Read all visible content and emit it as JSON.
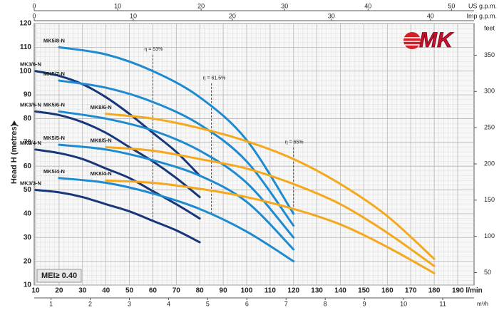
{
  "chart_data": {
    "type": "line",
    "y_label": "Head H (metres)",
    "xlim": [
      9.4,
      197
    ],
    "xticks": [
      10,
      20,
      30,
      40,
      50,
      60,
      70,
      80,
      90,
      100,
      110,
      120,
      130,
      140,
      150,
      160,
      170,
      180,
      {
        "value": 190,
        "label": "190 l/min"
      }
    ],
    "ylim": [
      10,
      120
    ],
    "yticks": [
      10,
      20,
      30,
      40,
      50,
      60,
      70,
      80,
      90,
      100,
      110,
      120
    ],
    "y2_label": "feet",
    "y2lim": [
      32.8,
      393.7
    ],
    "y2ticks": [
      50,
      100,
      150,
      200,
      250,
      300,
      350
    ],
    "top_axes": [
      {
        "label": "US g.p.m.",
        "lim": [
          0,
          52.7
        ],
        "ticks": [
          0,
          10,
          20,
          30,
          40,
          50
        ]
      },
      {
        "label": "Imp g.p.m.",
        "lim": [
          0,
          44.4
        ],
        "ticks": [
          0,
          10,
          20,
          30,
          40
        ]
      }
    ],
    "bottom_axis2": {
      "label": "m³/h",
      "lim": [
        0.57,
        11.8
      ],
      "ticks": [
        1,
        2,
        3,
        4,
        5,
        6,
        7,
        8,
        9,
        10,
        11
      ]
    },
    "grid": true,
    "series": [
      {
        "name": "MK3/3-N",
        "color": "#17377a",
        "x": [
          10,
          20,
          30,
          40,
          50,
          60,
          70,
          80
        ],
        "values": [
          50,
          49,
          47,
          44,
          41,
          37,
          33,
          28
        ]
      },
      {
        "name": "MK3/4-N",
        "color": "#17377a",
        "x": [
          10,
          20,
          30,
          40,
          50,
          60,
          70,
          80
        ],
        "values": [
          67,
          65.5,
          63,
          59,
          55,
          49.5,
          44,
          38
        ]
      },
      {
        "name": "MK3/5-N",
        "color": "#17377a",
        "x": [
          10,
          20,
          30,
          40,
          50,
          60,
          70,
          80
        ],
        "values": [
          83,
          81.5,
          78.5,
          74,
          68,
          62,
          55,
          47
        ]
      },
      {
        "name": "MK3/6-N",
        "color": "#17377a",
        "x": [
          10,
          20,
          30,
          40,
          50,
          60,
          70,
          80
        ],
        "values": [
          100,
          98,
          94.5,
          89,
          82,
          74,
          66,
          56
        ]
      },
      {
        "name": "MK5/4-N",
        "color": "#1e8bd1",
        "x": [
          20,
          40,
          60,
          80,
          100,
          120
        ],
        "values": [
          55,
          53,
          48.5,
          42,
          32.5,
          20
        ]
      },
      {
        "name": "MK5/5-N",
        "color": "#1e8bd1",
        "x": [
          20,
          40,
          60,
          80,
          100,
          120
        ],
        "values": [
          69,
          67,
          62.5,
          56,
          45,
          25
        ]
      },
      {
        "name": "MK5/6-N",
        "color": "#1e8bd1",
        "x": [
          20,
          40,
          60,
          80,
          100,
          120
        ],
        "values": [
          83,
          80,
          75,
          66.5,
          53,
          30
        ]
      },
      {
        "name": "MK5/7-N",
        "color": "#1e8bd1",
        "x": [
          20,
          40,
          60,
          80,
          100,
          120
        ],
        "values": [
          96,
          93,
          87,
          77.5,
          62,
          35
        ]
      },
      {
        "name": "MK5/8-N",
        "color": "#1e8bd1",
        "x": [
          20,
          40,
          60,
          80,
          100,
          120
        ],
        "values": [
          110,
          107,
          100,
          89,
          71,
          40
        ]
      },
      {
        "name": "MK8/4-N",
        "color": "#f5a81c",
        "x": [
          40,
          60,
          80,
          100,
          120,
          140,
          160,
          180
        ],
        "values": [
          54,
          53,
          50.5,
          47,
          42,
          35.5,
          26,
          15
        ]
      },
      {
        "name": "MK8/5-N",
        "color": "#f5a81c",
        "x": [
          40,
          60,
          80,
          100,
          120,
          140,
          160,
          180
        ],
        "values": [
          68,
          66.5,
          63,
          59,
          52.5,
          44,
          32,
          18
        ]
      },
      {
        "name": "MK8/6-N",
        "color": "#f5a81c",
        "x": [
          40,
          60,
          80,
          100,
          120,
          140,
          160,
          180
        ],
        "values": [
          82,
          80,
          76,
          70.5,
          63,
          52.5,
          39,
          21
        ]
      }
    ],
    "annotations": [
      {
        "text": "η = 53%",
        "x": 60,
        "y": [
          37,
          107
        ]
      },
      {
        "text": "η = 61.5%",
        "x": 85,
        "y": [
          40,
          95
        ]
      },
      {
        "text": "η = 65%",
        "x": 120,
        "y": [
          40,
          68
        ]
      }
    ],
    "badge": "MEI≥ 0.40",
    "logo": "MK"
  }
}
